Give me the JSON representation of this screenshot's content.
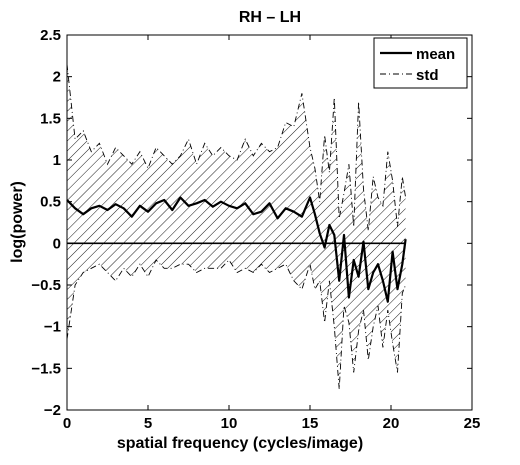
{
  "chart_data": {
    "type": "line",
    "title": "RH – LH",
    "xlabel": "spatial frequency (cycles/image)",
    "ylabel": "log(power)",
    "xlim": [
      0,
      25
    ],
    "ylim": [
      -2,
      2.5
    ],
    "xticks": [
      0,
      5,
      10,
      15,
      20,
      25
    ],
    "yticks": [
      -2,
      -1.5,
      -1,
      -0.5,
      0,
      0.5,
      1,
      1.5,
      2,
      2.5
    ],
    "xtick_labels": [
      "0",
      "5",
      "10",
      "15",
      "20",
      "25"
    ],
    "ytick_labels": [
      "−2",
      "−1.5",
      "−1",
      "−0.5",
      "0",
      "0.5",
      "1",
      "1.5",
      "2",
      "2.5"
    ],
    "grid": false,
    "legend_position": "top-right",
    "reference_line_y": 0,
    "series": [
      {
        "name": "mean",
        "style": "solid-thick",
        "x": [
          0,
          0.5,
          1,
          1.5,
          2,
          2.5,
          3,
          3.5,
          4,
          4.5,
          5,
          5.5,
          6,
          6.5,
          7,
          7.5,
          8,
          8.5,
          9,
          9.5,
          10,
          10.5,
          11,
          11.5,
          12,
          12.5,
          13,
          13.5,
          14,
          14.5,
          15,
          15.3,
          15.6,
          15.9,
          16.2,
          16.5,
          16.8,
          17.1,
          17.4,
          17.7,
          18,
          18.3,
          18.6,
          18.9,
          19.2,
          19.5,
          19.8,
          20.1,
          20.4,
          20.7,
          20.9
        ],
        "y": [
          0.52,
          0.42,
          0.35,
          0.42,
          0.45,
          0.4,
          0.47,
          0.42,
          0.32,
          0.45,
          0.38,
          0.48,
          0.52,
          0.4,
          0.55,
          0.45,
          0.48,
          0.52,
          0.44,
          0.5,
          0.45,
          0.42,
          0.48,
          0.35,
          0.38,
          0.48,
          0.3,
          0.42,
          0.38,
          0.32,
          0.55,
          0.35,
          0.12,
          -0.05,
          0.22,
          0.1,
          -0.45,
          0.1,
          -0.65,
          -0.2,
          -0.4,
          0.02,
          -0.55,
          -0.35,
          -0.25,
          -0.45,
          -0.7,
          -0.1,
          -0.55,
          -0.25,
          0.05
        ]
      },
      {
        "name": "std",
        "style": "dashdot-thin",
        "x": [
          0,
          0.5,
          1,
          1.5,
          2,
          2.5,
          3,
          3.5,
          4,
          4.5,
          5,
          5.5,
          6,
          6.5,
          7,
          7.5,
          8,
          8.5,
          9,
          9.5,
          10,
          10.5,
          11,
          11.5,
          12,
          12.5,
          13,
          13.5,
          14,
          14.5,
          15,
          15.3,
          15.6,
          15.9,
          16.2,
          16.5,
          16.8,
          17.1,
          17.4,
          17.7,
          18,
          18.3,
          18.6,
          18.9,
          19.2,
          19.5,
          19.8,
          20.1,
          20.4,
          20.7,
          20.9
        ],
        "y_upper": [
          2.15,
          1.25,
          1.35,
          1.1,
          1.2,
          0.95,
          1.15,
          1.05,
          0.95,
          1.1,
          0.9,
          1.15,
          1.05,
          0.95,
          1.05,
          1.25,
          0.95,
          1.2,
          1.05,
          1.15,
          1.05,
          1.0,
          1.25,
          1.05,
          1.2,
          1.1,
          1.15,
          1.45,
          1.4,
          1.8,
          1.15,
          0.9,
          0.5,
          1.3,
          0.85,
          1.75,
          0.3,
          0.6,
          0.95,
          0.2,
          1.7,
          0.65,
          0.15,
          0.8,
          0.55,
          0.45,
          1.1,
          0.75,
          0.2,
          0.8,
          0.55
        ],
        "y_lower": [
          -1.15,
          -0.5,
          -0.35,
          -0.3,
          -0.25,
          -0.35,
          -0.45,
          -0.3,
          -0.4,
          -0.25,
          -0.4,
          -0.2,
          -0.3,
          -0.3,
          -0.25,
          -0.25,
          -0.35,
          -0.3,
          -0.3,
          -0.3,
          -0.2,
          -0.35,
          -0.3,
          -0.35,
          -0.25,
          -0.35,
          -0.3,
          -0.25,
          -0.45,
          -0.55,
          -0.25,
          -0.55,
          -0.45,
          -0.95,
          -0.45,
          -1.0,
          -1.75,
          -0.75,
          -0.95,
          -1.55,
          -1.05,
          -0.8,
          -1.4,
          -1.0,
          -0.75,
          -1.25,
          -0.8,
          -1.2,
          -1.55,
          -0.6,
          -0.5
        ]
      }
    ],
    "legend": [
      "mean",
      "std"
    ]
  }
}
